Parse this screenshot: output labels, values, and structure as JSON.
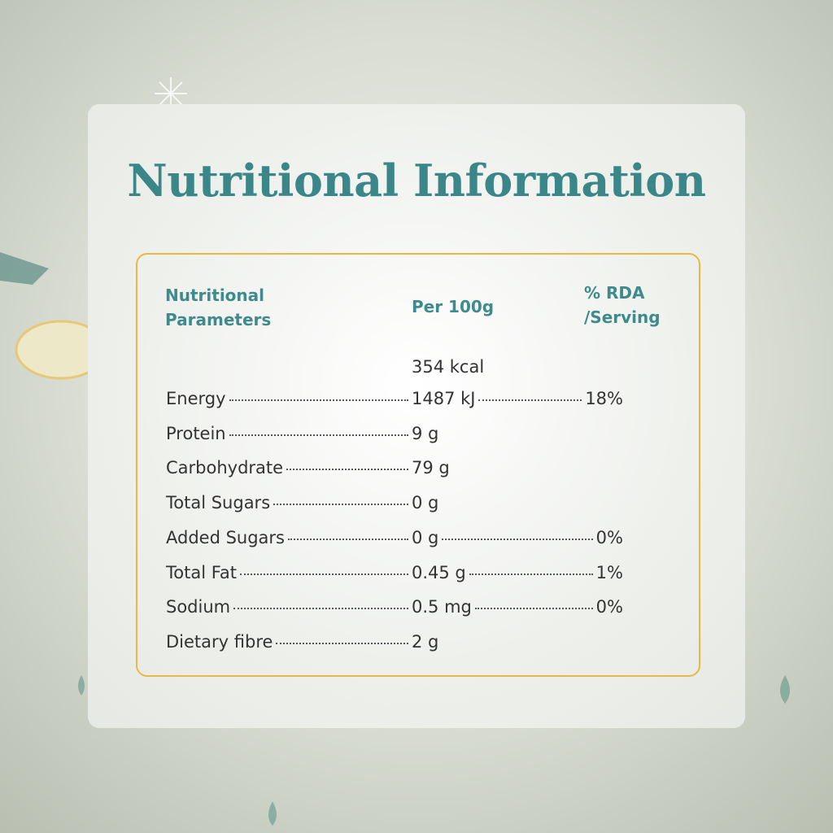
{
  "header": {
    "title": "Nutritional Information"
  },
  "table": {
    "columns": [
      "Nutritional Parameters",
      "Per 100g",
      "% RDA /Serving"
    ],
    "rows": [
      {
        "name": "Energy",
        "per_100g": [
          "354 kcal",
          "1487 kJ"
        ],
        "rda": "18%"
      },
      {
        "name": "Protein",
        "per_100g": [
          "9 g"
        ]
      },
      {
        "name": "Carbohydrate",
        "per_100g": [
          "79 g"
        ]
      },
      {
        "name": "Total Sugars",
        "per_100g": [
          "0 g"
        ]
      },
      {
        "name": "Added Sugars",
        "per_100g": [
          "0 g"
        ],
        "rda": "0%"
      },
      {
        "name": "Total Fat",
        "per_100g": [
          "0.45 g"
        ],
        "rda": "1%"
      },
      {
        "name": "Sodium",
        "per_100g": [
          "0.5 mg"
        ],
        "rda": "0%"
      },
      {
        "name": "Dietary fibre",
        "per_100g": [
          "2 g"
        ]
      }
    ]
  }
}
